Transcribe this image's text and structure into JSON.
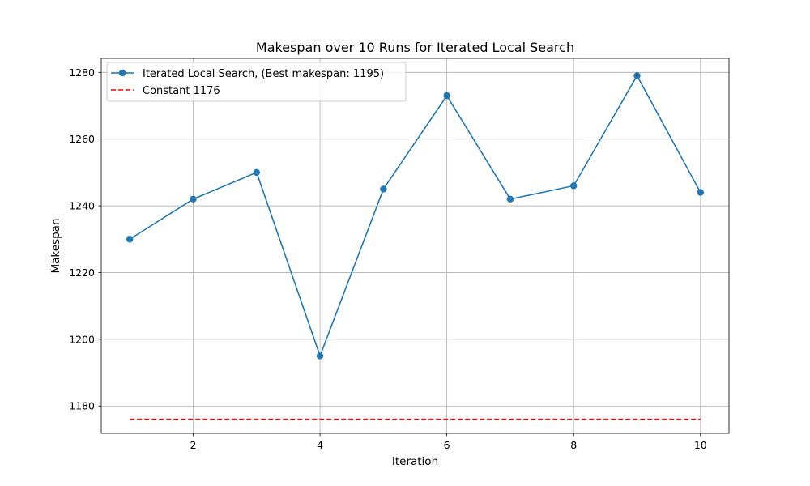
{
  "chart_data": {
    "type": "line",
    "title": "Makespan over 10 Runs for Iterated Local Search",
    "xlabel": "Iteration",
    "ylabel": "Makespan",
    "x": [
      1,
      2,
      3,
      4,
      5,
      6,
      7,
      8,
      9,
      10
    ],
    "series": [
      {
        "name": "Iterated Local Search, (Best makespan: 1195)",
        "values": [
          1230,
          1242,
          1250,
          1195,
          1245,
          1273,
          1242,
          1246,
          1279,
          1244
        ],
        "color": "#1f77b4",
        "style": "solid",
        "marker": "circle"
      },
      {
        "name": "Constant 1176",
        "values": [
          1176,
          1176,
          1176,
          1176,
          1176,
          1176,
          1176,
          1176,
          1176,
          1176
        ],
        "color": "#ff0000",
        "style": "dashed",
        "marker": "none"
      }
    ],
    "xlim": [
      0.55,
      10.45
    ],
    "ylim": [
      1171.8,
      1284.2
    ],
    "xticks": [
      2,
      4,
      6,
      8,
      10
    ],
    "yticks": [
      1180,
      1200,
      1220,
      1240,
      1260,
      1280
    ],
    "grid": true,
    "legend_position": "top-left"
  }
}
